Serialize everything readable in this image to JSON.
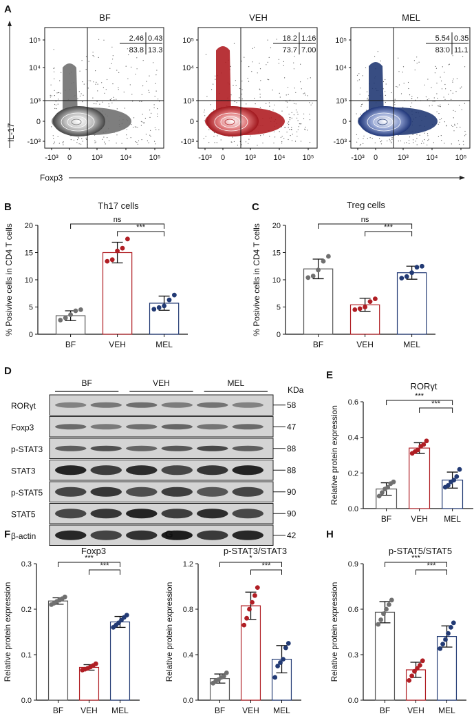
{
  "colors": {
    "bf": "#707070",
    "veh": "#b01e24",
    "mel": "#223a74",
    "gray_bar_edge": "#555555"
  },
  "panel_a": {
    "letter": "A",
    "ylabel": "IL-17",
    "xlabel": "Foxp3",
    "plots": [
      {
        "title": "BF",
        "color_key": "bf",
        "quadrants": [
          "2.46",
          "0.43",
          "83.8",
          "13.3"
        ]
      },
      {
        "title": "VEH",
        "color_key": "veh",
        "quadrants": [
          "18.2",
          "1.16",
          "73.7",
          "7.00"
        ]
      },
      {
        "title": "MEL",
        "color_key": "mel",
        "quadrants": [
          "5.54",
          "0.35",
          "83.0",
          "11.1"
        ]
      }
    ],
    "y_ticks": [
      "10⁵",
      "10⁴",
      "10³",
      "0",
      "-10³"
    ],
    "x_ticks": [
      "-10³",
      "0",
      "10³",
      "10⁴",
      "10⁵"
    ]
  },
  "panel_d": {
    "letter": "D",
    "groups": [
      "BF",
      "VEH",
      "MEL"
    ],
    "kda_label": "KDa",
    "rows": [
      {
        "name": "RORγt",
        "kda": "58"
      },
      {
        "name": "Foxp3",
        "kda": "47"
      },
      {
        "name": "p-STAT3",
        "kda": "88"
      },
      {
        "name": "STAT3",
        "kda": "88"
      },
      {
        "name": "p-STAT5",
        "kda": "90"
      },
      {
        "name": "STAT5",
        "kda": "90"
      },
      {
        "name": "β-actin",
        "kda": "42"
      }
    ]
  },
  "chart_data": [
    {
      "panel": "B",
      "type": "bar",
      "title": "Th17 cells",
      "ylabel": "% Posivive cells in CD4 T cells",
      "categories": [
        "BF",
        "VEH",
        "MEL"
      ],
      "values": [
        3.4,
        15.0,
        5.7
      ],
      "sd": [
        0.9,
        1.9,
        1.3
      ],
      "points": [
        [
          2.6,
          3.0,
          3.6,
          4.3,
          4.5
        ],
        [
          13.4,
          13.7,
          15.3,
          15.8,
          17.5
        ],
        [
          4.6,
          4.9,
          5.2,
          6.3,
          7.2
        ]
      ],
      "ylim": [
        0,
        20
      ],
      "yticks": [
        "0",
        "5",
        "10",
        "15",
        "20"
      ],
      "sig": [
        {
          "from": 0,
          "to": 2,
          "label": "ns"
        },
        {
          "from": 1,
          "to": 2,
          "label": "***"
        }
      ]
    },
    {
      "panel": "C",
      "type": "bar",
      "title": "Treg cells",
      "ylabel": "% Posivive cells in CD4 T cells",
      "categories": [
        "BF",
        "VEH",
        "MEL"
      ],
      "values": [
        12.0,
        5.4,
        11.3
      ],
      "sd": [
        1.8,
        1.2,
        1.2
      ],
      "points": [
        [
          10.4,
          10.7,
          11.8,
          13.4,
          14.3
        ],
        [
          4.5,
          4.7,
          5.0,
          6.0,
          6.5
        ],
        [
          10.3,
          10.6,
          11.3,
          12.3,
          12.5
        ]
      ],
      "ylim": [
        0,
        20
      ],
      "yticks": [
        "0",
        "5",
        "10",
        "15",
        "20"
      ],
      "sig": [
        {
          "from": 0,
          "to": 2,
          "label": "ns"
        },
        {
          "from": 1,
          "to": 2,
          "label": "***"
        }
      ]
    },
    {
      "panel": "E",
      "type": "bar",
      "title": "RORγt",
      "ylabel": "Relative protein expression",
      "categories": [
        "BF",
        "VEH",
        "MEL"
      ],
      "values": [
        0.11,
        0.34,
        0.16
      ],
      "sd": [
        0.035,
        0.03,
        0.045
      ],
      "points": [
        [
          0.07,
          0.09,
          0.11,
          0.12,
          0.14,
          0.15
        ],
        [
          0.31,
          0.32,
          0.33,
          0.35,
          0.36,
          0.38
        ],
        [
          0.12,
          0.13,
          0.15,
          0.16,
          0.18,
          0.22
        ]
      ],
      "ylim": [
        0,
        0.6
      ],
      "yticks": [
        "0.0",
        "0.2",
        "0.4",
        "0.6"
      ],
      "sig": [
        {
          "from": 0,
          "to": 2,
          "label": "***"
        },
        {
          "from": 1,
          "to": 2,
          "label": "***"
        }
      ]
    },
    {
      "panel": "F",
      "type": "bar",
      "title": "Foxp3",
      "ylabel": "Relative protein expression",
      "categories": [
        "BF",
        "VEH",
        "MEL"
      ],
      "values": [
        0.218,
        0.072,
        0.172
      ],
      "sd": [
        0.007,
        0.006,
        0.012
      ],
      "points": [
        [
          0.21,
          0.213,
          0.217,
          0.22,
          0.223,
          0.227
        ],
        [
          0.066,
          0.068,
          0.07,
          0.073,
          0.076,
          0.08
        ],
        [
          0.16,
          0.165,
          0.17,
          0.176,
          0.182,
          0.187
        ]
      ],
      "ylim": [
        0,
        0.3
      ],
      "yticks": [
        "0.0",
        "0.1",
        "0.2",
        "0.3"
      ],
      "sig": [
        {
          "from": 0,
          "to": 2,
          "label": "***"
        },
        {
          "from": 1,
          "to": 2,
          "label": "***"
        }
      ]
    },
    {
      "panel": "G",
      "type": "bar",
      "title": "p-STAT3/STAT3",
      "ylabel": "Relative protein expression",
      "categories": [
        "BF",
        "VEH",
        "MEL"
      ],
      "values": [
        0.19,
        0.83,
        0.36
      ],
      "sd": [
        0.04,
        0.12,
        0.12
      ],
      "points": [
        [
          0.15,
          0.17,
          0.18,
          0.2,
          0.21,
          0.24
        ],
        [
          0.66,
          0.72,
          0.8,
          0.86,
          0.92,
          0.99
        ],
        [
          0.2,
          0.3,
          0.33,
          0.36,
          0.46,
          0.5
        ]
      ],
      "ylim": [
        0,
        1.2
      ],
      "yticks": [
        "0.0",
        "0.4",
        "0.8",
        "1.2"
      ],
      "sig": [
        {
          "from": 0,
          "to": 2,
          "label": "*"
        },
        {
          "from": 1,
          "to": 2,
          "label": "***"
        }
      ]
    },
    {
      "panel": "H",
      "type": "bar",
      "title": "p-STAT5/STAT5",
      "ylabel": "Relative protein expression",
      "categories": [
        "BF",
        "VEH",
        "MEL"
      ],
      "values": [
        0.58,
        0.2,
        0.42
      ],
      "sd": [
        0.07,
        0.05,
        0.07
      ],
      "points": [
        [
          0.5,
          0.53,
          0.57,
          0.6,
          0.63,
          0.66
        ],
        [
          0.13,
          0.16,
          0.19,
          0.21,
          0.23,
          0.26
        ],
        [
          0.34,
          0.37,
          0.4,
          0.44,
          0.48,
          0.51
        ]
      ],
      "ylim": [
        0,
        0.9
      ],
      "yticks": [
        "0.0",
        "0.3",
        "0.6",
        "0.9"
      ],
      "sig": [
        {
          "from": 0,
          "to": 2,
          "label": "***"
        },
        {
          "from": 1,
          "to": 2,
          "label": "***"
        }
      ]
    }
  ]
}
